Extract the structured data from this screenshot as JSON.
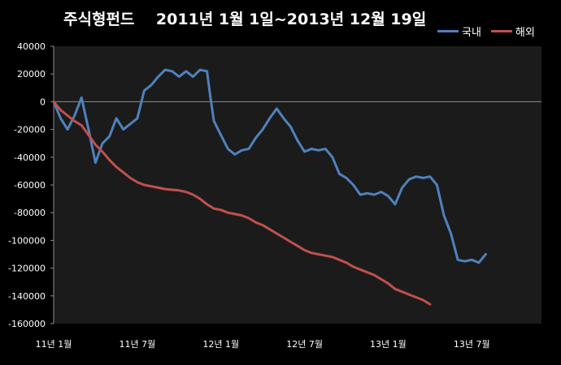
{
  "chart_data": {
    "type": "line",
    "title": "주식형펀드",
    "subtitle": "2011년 1월 1일~2013년 12월 19일",
    "xlabel": "",
    "ylabel": "",
    "ylim": [
      -160000,
      40000
    ],
    "yticks": [
      40000,
      20000,
      0,
      -20000,
      -40000,
      -60000,
      -80000,
      -100000,
      -120000,
      -140000,
      -160000
    ],
    "xlim": [
      "2011-01",
      "2013-12"
    ],
    "xticks": [
      {
        "x": "2011-01",
        "label": "11년 1월"
      },
      {
        "x": "2011-07",
        "label": "11년 7월"
      },
      {
        "x": "2012-01",
        "label": "12년 1월"
      },
      {
        "x": "2012-07",
        "label": "12년 7월"
      },
      {
        "x": "2013-01",
        "label": "13년 1월"
      },
      {
        "x": "2013-07",
        "label": "13년 7월"
      }
    ],
    "grid": false,
    "legend": "top-right",
    "series": [
      {
        "name": "국내",
        "color": "#4F81BD",
        "points": [
          [
            "2011-01",
            0
          ],
          [
            "2011-01-16",
            -12000
          ],
          [
            "2011-02",
            -20000
          ],
          [
            "2011-02-16",
            -10000
          ],
          [
            "2011-03",
            3000
          ],
          [
            "2011-03-16",
            -20000
          ],
          [
            "2011-04",
            -44000
          ],
          [
            "2011-04-16",
            -30000
          ],
          [
            "2011-05",
            -25000
          ],
          [
            "2011-05-16",
            -12000
          ],
          [
            "2011-06",
            -20000
          ],
          [
            "2011-06-16",
            -16000
          ],
          [
            "2011-07",
            -12000
          ],
          [
            "2011-07-16",
            8000
          ],
          [
            "2011-08",
            12000
          ],
          [
            "2011-08-16",
            18000
          ],
          [
            "2011-09",
            23000
          ],
          [
            "2011-09-16",
            22000
          ],
          [
            "2011-10",
            18000
          ],
          [
            "2011-10-16",
            22000
          ],
          [
            "2011-11",
            18000
          ],
          [
            "2011-11-16",
            23000
          ],
          [
            "2011-12",
            22000
          ],
          [
            "2011-12-08",
            4000
          ],
          [
            "2011-12-16",
            -14000
          ],
          [
            "2012-01",
            -24000
          ],
          [
            "2012-01-16",
            -34000
          ],
          [
            "2012-02",
            -38000
          ],
          [
            "2012-02-16",
            -35000
          ],
          [
            "2012-03",
            -34000
          ],
          [
            "2012-03-16",
            -26000
          ],
          [
            "2012-04",
            -20000
          ],
          [
            "2012-04-16",
            -12000
          ],
          [
            "2012-05",
            -5000
          ],
          [
            "2012-05-16",
            -12000
          ],
          [
            "2012-06",
            -18000
          ],
          [
            "2012-06-16",
            -28000
          ],
          [
            "2012-07",
            -36000
          ],
          [
            "2012-07-16",
            -34000
          ],
          [
            "2012-08",
            -35000
          ],
          [
            "2012-08-16",
            -34000
          ],
          [
            "2012-09",
            -40000
          ],
          [
            "2012-09-16",
            -52000
          ],
          [
            "2012-10",
            -55000
          ],
          [
            "2012-10-16",
            -60000
          ],
          [
            "2012-11",
            -67000
          ],
          [
            "2012-11-16",
            -66000
          ],
          [
            "2012-12",
            -67000
          ],
          [
            "2012-12-16",
            -65000
          ],
          [
            "2013-01",
            -68000
          ],
          [
            "2013-01-16",
            -74000
          ],
          [
            "2013-02",
            -62000
          ],
          [
            "2013-02-16",
            -56000
          ],
          [
            "2013-03",
            -54000
          ],
          [
            "2013-03-16",
            -55000
          ],
          [
            "2013-04",
            -54000
          ],
          [
            "2013-04-16",
            -60000
          ],
          [
            "2013-05",
            -82000
          ],
          [
            "2013-05-16",
            -95000
          ],
          [
            "2013-06",
            -114000
          ],
          [
            "2013-06-16",
            -115000
          ],
          [
            "2013-07",
            -114000
          ],
          [
            "2013-07-16",
            -116000
          ],
          [
            "2013-08",
            -110000
          ]
        ]
      },
      {
        "name": "해외",
        "color": "#C0504D",
        "points": [
          [
            "2011-01",
            0
          ],
          [
            "2011-01-16",
            -6000
          ],
          [
            "2011-02",
            -10000
          ],
          [
            "2011-02-16",
            -14000
          ],
          [
            "2011-03",
            -17000
          ],
          [
            "2011-03-16",
            -24000
          ],
          [
            "2011-04",
            -31000
          ],
          [
            "2011-04-16",
            -36000
          ],
          [
            "2011-05",
            -42000
          ],
          [
            "2011-05-16",
            -47000
          ],
          [
            "2011-06",
            -51000
          ],
          [
            "2011-06-16",
            -55000
          ],
          [
            "2011-07",
            -58000
          ],
          [
            "2011-07-16",
            -60000
          ],
          [
            "2011-08",
            -61000
          ],
          [
            "2011-08-16",
            -62000
          ],
          [
            "2011-09",
            -63000
          ],
          [
            "2011-09-16",
            -63500
          ],
          [
            "2011-10",
            -64000
          ],
          [
            "2011-10-16",
            -65000
          ],
          [
            "2011-11",
            -67000
          ],
          [
            "2011-11-16",
            -70000
          ],
          [
            "2011-12",
            -74000
          ],
          [
            "2011-12-16",
            -77000
          ],
          [
            "2012-01",
            -78000
          ],
          [
            "2012-01-16",
            -80000
          ],
          [
            "2012-02",
            -81000
          ],
          [
            "2012-02-16",
            -82000
          ],
          [
            "2012-03",
            -84000
          ],
          [
            "2012-03-16",
            -87000
          ],
          [
            "2012-04",
            -89000
          ],
          [
            "2012-04-16",
            -92000
          ],
          [
            "2012-05",
            -95000
          ],
          [
            "2012-05-16",
            -98000
          ],
          [
            "2012-06",
            -101000
          ],
          [
            "2012-06-16",
            -104000
          ],
          [
            "2012-07",
            -107000
          ],
          [
            "2012-07-16",
            -109000
          ],
          [
            "2012-08",
            -110000
          ],
          [
            "2012-08-16",
            -111000
          ],
          [
            "2012-09",
            -112000
          ],
          [
            "2012-09-16",
            -114000
          ],
          [
            "2012-10",
            -116000
          ],
          [
            "2012-10-16",
            -119000
          ],
          [
            "2012-11",
            -121000
          ],
          [
            "2012-11-16",
            -123000
          ],
          [
            "2012-12",
            -125000
          ],
          [
            "2012-12-16",
            -128000
          ],
          [
            "2013-01",
            -131000
          ],
          [
            "2013-01-16",
            -135000
          ],
          [
            "2013-02",
            -137000
          ],
          [
            "2013-02-16",
            -139000
          ],
          [
            "2013-03",
            -141000
          ],
          [
            "2013-03-16",
            -143000
          ],
          [
            "2013-04",
            -146000
          ]
        ]
      }
    ]
  }
}
